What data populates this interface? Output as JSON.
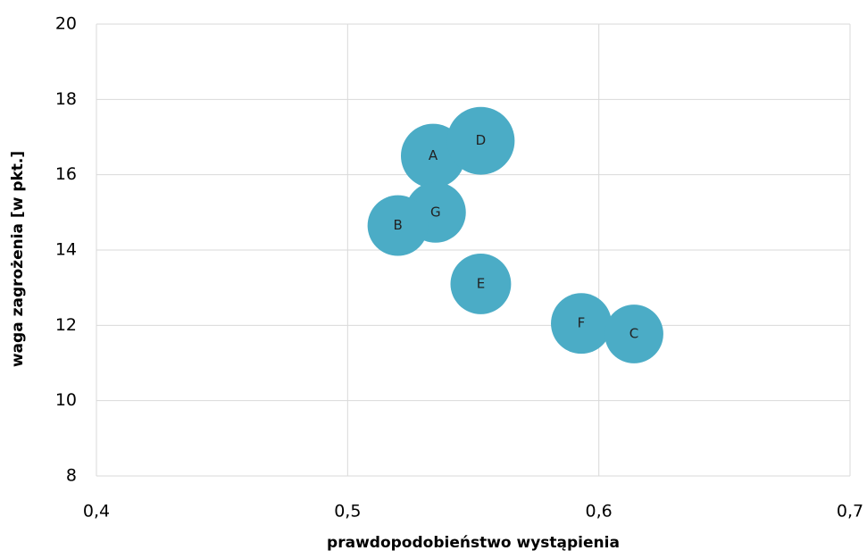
{
  "chart_data": {
    "type": "bubble",
    "x_label": "prawdopodobieństwo wystąpienia",
    "y_label": "waga zagrożenia [w pkt.]",
    "labels": [
      "A",
      "D",
      "G",
      "B",
      "E",
      "F",
      "C"
    ],
    "x": [
      0.534,
      0.553,
      0.535,
      0.52,
      0.553,
      0.593,
      0.614
    ],
    "values": [
      16.5,
      16.9,
      15.0,
      14.65,
      13.1,
      12.05,
      11.77
    ],
    "sizes": [
      9,
      10,
      8,
      8,
      8,
      8,
      7.5
    ],
    "color": "#4bacc6",
    "xlim": [
      0.4,
      0.7
    ],
    "xticks": [
      {
        "value": 0.4,
        "label": "0,4"
      },
      {
        "value": 0.5,
        "label": "0,5"
      },
      {
        "value": 0.6,
        "label": "0,6"
      },
      {
        "value": 0.7,
        "label": "0,7"
      }
    ],
    "ylim": [
      8,
      20
    ],
    "yticks": [
      8,
      10,
      12,
      14,
      16,
      18,
      20
    ],
    "grid": true
  }
}
